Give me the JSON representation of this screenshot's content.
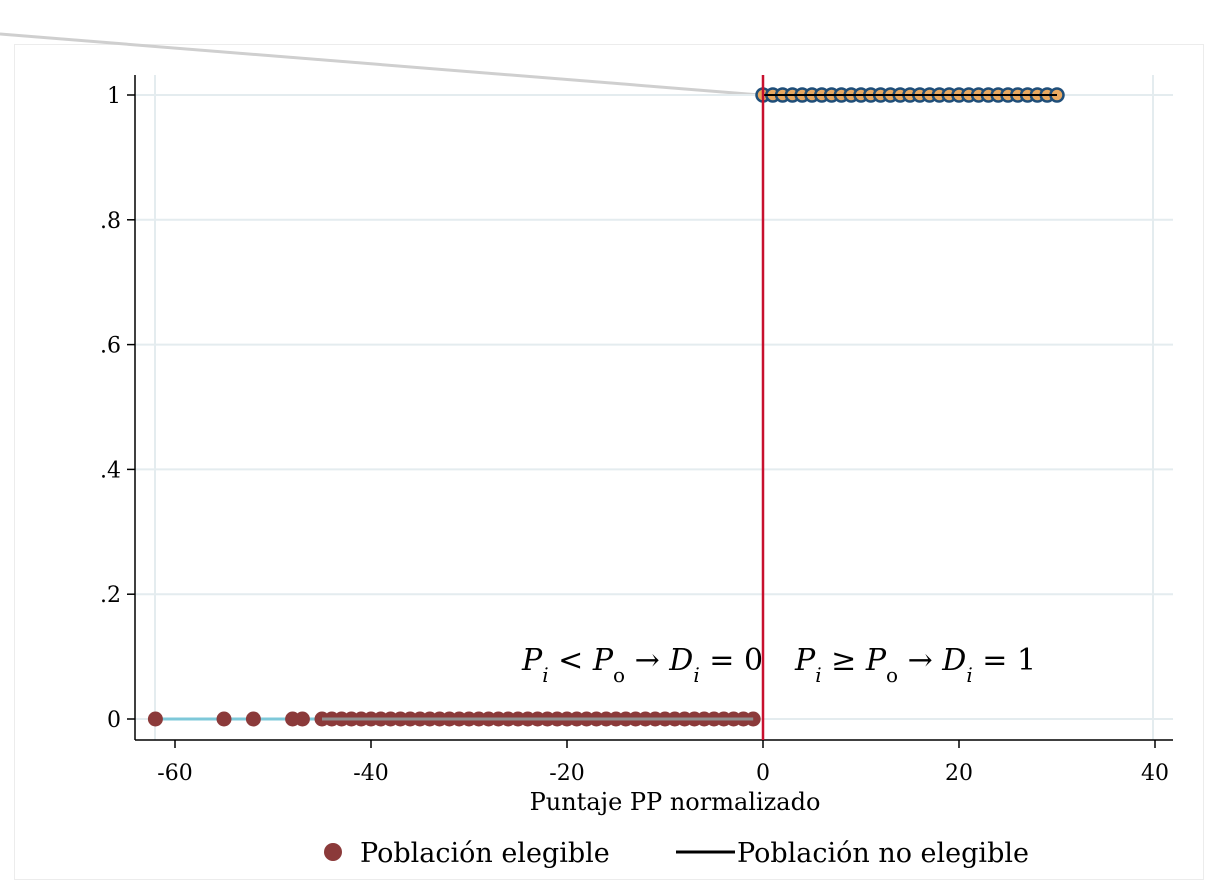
{
  "chart_data": {
    "type": "scatter",
    "xlabel": "Puntaje PP normalizado",
    "ylabel": "",
    "xlim": [
      -62,
      42
    ],
    "ylim": [
      0,
      1
    ],
    "x_ticks": [
      "-60",
      "-40",
      "-20",
      "0",
      "20",
      "40"
    ],
    "y_ticks": [
      "0",
      ".2",
      ".4",
      ".6",
      ".8",
      "1"
    ],
    "cutoff_x": 0,
    "grid": true,
    "legend_position": "bottom",
    "series": [
      {
        "name": "Población elegible",
        "marker": "circle",
        "color": "#8b3a3a",
        "line_color": "#7ec8d9",
        "y": 0,
        "x": [
          -62,
          -55,
          -52,
          -48,
          -47,
          -45,
          -44,
          -43,
          -42,
          -41,
          -40,
          -39,
          -38,
          -37,
          -36,
          -35,
          -34,
          -33,
          -32,
          -31,
          -30,
          -29,
          -28,
          -27,
          -26,
          -25,
          -24,
          -23,
          -22,
          -21,
          -20,
          -19,
          -18,
          -17,
          -16,
          -15,
          -14,
          -13,
          -12,
          -11,
          -10,
          -9,
          -8,
          -7,
          -6,
          -5,
          -4,
          -3,
          -2,
          -1
        ]
      },
      {
        "name": "Población no elegible",
        "marker": "line",
        "color": "#000000",
        "point_color": "#e8a860",
        "point_edge": "#1f4e79",
        "y": 1,
        "x": [
          0,
          1,
          2,
          3,
          4,
          5,
          6,
          7,
          8,
          9,
          10,
          11,
          12,
          13,
          14,
          15,
          16,
          17,
          18,
          19,
          20,
          21,
          22,
          23,
          24,
          25,
          26,
          27,
          28,
          29,
          30
        ]
      }
    ],
    "annotations": {
      "left": {
        "p1": "P",
        "s1": "i",
        "op": " < ",
        "p2": "P",
        "s2": "o",
        "arrow": " → ",
        "d": "D",
        "s3": "i",
        "rest": " = 0"
      },
      "right": {
        "p1": "P",
        "s1": "i",
        "op": " ≥ ",
        "p2": "P",
        "s2": "o",
        "arrow": " → ",
        "d": "D",
        "s3": "i",
        "rest": " = 1"
      }
    },
    "colors": {
      "cutoff": "#c8102e",
      "grid": "#e4ecef",
      "axis": "#000000"
    }
  }
}
